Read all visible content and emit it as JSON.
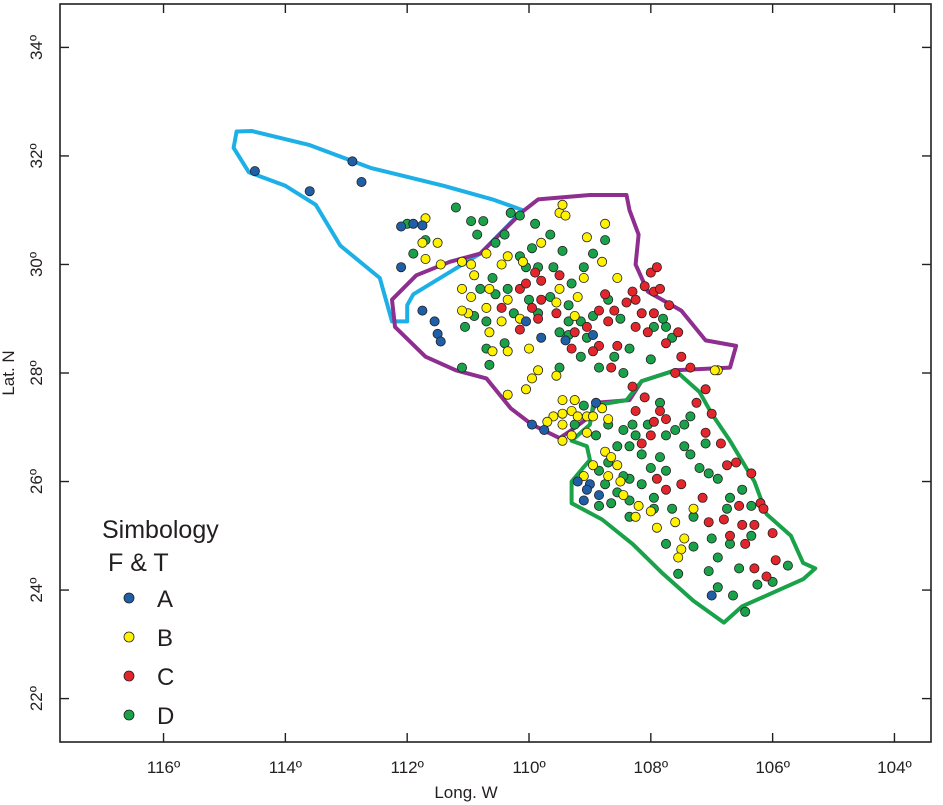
{
  "map": {
    "x_label": "Long. W",
    "y_label": "Lat. N",
    "x_ticks": [
      "116º",
      "114º",
      "112º",
      "110º",
      "108º",
      "106º",
      "104º"
    ],
    "y_ticks": [
      "34º",
      "32º",
      "30º",
      "28º",
      "26º",
      "24º",
      "22º"
    ],
    "x_tick_values": [
      -116,
      -114,
      -112,
      -110,
      -108,
      -106,
      -104
    ],
    "y_tick_values": [
      34,
      32,
      30,
      28,
      26,
      24,
      22
    ],
    "x_range": [
      -117.7,
      -103.4
    ],
    "y_range": [
      21.2,
      34.8
    ]
  },
  "legend": {
    "title": "Simbology",
    "subtitle": "F & T",
    "items": [
      {
        "key": "A",
        "label": "A",
        "color": "#1f5fa8"
      },
      {
        "key": "B",
        "label": "B",
        "color": "#fff200"
      },
      {
        "key": "C",
        "label": "C",
        "color": "#e3262b"
      },
      {
        "key": "D",
        "label": "D",
        "color": "#19a24a"
      }
    ]
  },
  "regions": [
    {
      "name": "northwest",
      "color": "#1cb0e6",
      "points": [
        [
          -114.8,
          32.45
        ],
        [
          -114.55,
          32.46
        ],
        [
          -113.6,
          32.2
        ],
        [
          -112.6,
          31.78
        ],
        [
          -111.4,
          31.45
        ],
        [
          -110.6,
          31.2
        ],
        [
          -110.1,
          31.0
        ],
        [
          -110.8,
          30.2
        ],
        [
          -111.9,
          29.45
        ],
        [
          -112.0,
          29.25
        ],
        [
          -112.0,
          28.95
        ],
        [
          -112.25,
          28.95
        ],
        [
          -112.45,
          29.75
        ],
        [
          -113.1,
          30.35
        ],
        [
          -113.5,
          31.1
        ],
        [
          -114.0,
          31.45
        ],
        [
          -114.6,
          31.7
        ],
        [
          -114.85,
          32.15
        ],
        [
          -114.8,
          32.45
        ]
      ]
    },
    {
      "name": "central",
      "color": "#8e2f8f",
      "points": [
        [
          -110.1,
          30.98
        ],
        [
          -109.85,
          31.2
        ],
        [
          -109.0,
          31.28
        ],
        [
          -108.4,
          31.28
        ],
        [
          -108.35,
          31.0
        ],
        [
          -108.2,
          30.55
        ],
        [
          -108.25,
          30.0
        ],
        [
          -108.05,
          29.5
        ],
        [
          -107.5,
          29.15
        ],
        [
          -107.1,
          28.6
        ],
        [
          -106.6,
          28.5
        ],
        [
          -106.7,
          28.1
        ],
        [
          -107.6,
          28.05
        ],
        [
          -108.15,
          27.85
        ],
        [
          -108.35,
          27.5
        ],
        [
          -108.9,
          27.45
        ],
        [
          -109.0,
          27.2
        ],
        [
          -109.3,
          26.95
        ],
        [
          -109.5,
          26.8
        ],
        [
          -109.95,
          27.05
        ],
        [
          -110.3,
          27.35
        ],
        [
          -110.7,
          27.9
        ],
        [
          -111.2,
          28.05
        ],
        [
          -111.7,
          28.3
        ],
        [
          -112.2,
          28.85
        ],
        [
          -112.25,
          29.35
        ],
        [
          -111.85,
          29.8
        ],
        [
          -111.3,
          30.05
        ],
        [
          -110.8,
          30.2
        ],
        [
          -110.1,
          30.98
        ]
      ]
    },
    {
      "name": "south",
      "color": "#19a24a",
      "points": [
        [
          -107.6,
          28.05
        ],
        [
          -107.2,
          27.65
        ],
        [
          -107.0,
          27.25
        ],
        [
          -106.7,
          26.75
        ],
        [
          -106.3,
          26.0
        ],
        [
          -106.1,
          25.4
        ],
        [
          -105.7,
          25.0
        ],
        [
          -105.5,
          24.5
        ],
        [
          -105.3,
          24.4
        ],
        [
          -105.5,
          24.2
        ],
        [
          -105.9,
          24.0
        ],
        [
          -106.5,
          23.7
        ],
        [
          -106.8,
          23.4
        ],
        [
          -107.3,
          23.8
        ],
        [
          -107.8,
          24.3
        ],
        [
          -108.3,
          24.85
        ],
        [
          -108.8,
          25.3
        ],
        [
          -109.3,
          25.6
        ],
        [
          -109.3,
          26.0
        ],
        [
          -109.0,
          26.4
        ],
        [
          -109.05,
          26.65
        ],
        [
          -109.3,
          26.75
        ],
        [
          -109.0,
          27.05
        ],
        [
          -108.95,
          27.4
        ],
        [
          -108.4,
          27.5
        ],
        [
          -108.15,
          27.85
        ],
        [
          -107.6,
          28.05
        ]
      ]
    }
  ],
  "stations": {
    "A": [
      [
        -114.5,
        31.72
      ],
      [
        -113.6,
        31.35
      ],
      [
        -112.9,
        31.9
      ],
      [
        -112.75,
        31.52
      ],
      [
        -112.1,
        30.7
      ],
      [
        -111.9,
        30.75
      ],
      [
        -111.75,
        30.72
      ],
      [
        -112.1,
        29.95
      ],
      [
        -111.75,
        29.15
      ],
      [
        -111.55,
        28.95
      ],
      [
        -111.5,
        28.72
      ],
      [
        -111.45,
        28.58
      ],
      [
        -110.05,
        28.95
      ],
      [
        -109.8,
        28.65
      ],
      [
        -109.4,
        28.6
      ],
      [
        -108.95,
        28.7
      ],
      [
        -109.95,
        27.05
      ],
      [
        -109.75,
        26.95
      ],
      [
        -108.9,
        27.45
      ],
      [
        -109.2,
        26.0
      ],
      [
        -109.0,
        25.95
      ],
      [
        -108.85,
        25.75
      ],
      [
        -109.05,
        25.85
      ],
      [
        -109.1,
        25.65
      ],
      [
        -107.0,
        23.9
      ]
    ],
    "B": [
      [
        -111.7,
        30.85
      ],
      [
        -111.75,
        30.4
      ],
      [
        -111.5,
        30.4
      ],
      [
        -111.7,
        30.1
      ],
      [
        -111.45,
        30.0
      ],
      [
        -111.1,
        30.05
      ],
      [
        -110.95,
        30.0
      ],
      [
        -110.7,
        30.2
      ],
      [
        -110.9,
        29.8
      ],
      [
        -111.1,
        29.55
      ],
      [
        -110.95,
        29.4
      ],
      [
        -110.7,
        29.2
      ],
      [
        -111.0,
        29.1
      ],
      [
        -111.1,
        29.15
      ],
      [
        -110.65,
        29.55
      ],
      [
        -110.35,
        29.35
      ],
      [
        -110.35,
        30.15
      ],
      [
        -110.45,
        30.0
      ],
      [
        -110.1,
        30.05
      ],
      [
        -109.8,
        30.4
      ],
      [
        -109.5,
        30.95
      ],
      [
        -109.45,
        31.1
      ],
      [
        -109.4,
        30.9
      ],
      [
        -109.05,
        30.5
      ],
      [
        -108.75,
        30.75
      ],
      [
        -108.8,
        30.05
      ],
      [
        -108.55,
        29.75
      ],
      [
        -109.1,
        29.75
      ],
      [
        -109.5,
        29.55
      ],
      [
        -109.2,
        29.4
      ],
      [
        -109.25,
        29.05
      ],
      [
        -109.55,
        29.3
      ],
      [
        -110.15,
        29.0
      ],
      [
        -110.45,
        28.95
      ],
      [
        -110.6,
        28.4
      ],
      [
        -110.35,
        28.4
      ],
      [
        -110.0,
        28.45
      ],
      [
        -110.35,
        27.6
      ],
      [
        -110.05,
        27.7
      ],
      [
        -109.95,
        27.9
      ],
      [
        -109.85,
        28.05
      ],
      [
        -109.55,
        27.95
      ],
      [
        -109.45,
        27.5
      ],
      [
        -109.3,
        27.3
      ],
      [
        -109.25,
        27.5
      ],
      [
        -109.2,
        27.2
      ],
      [
        -109.05,
        27.2
      ],
      [
        -108.95,
        27.2
      ],
      [
        -108.8,
        27.35
      ],
      [
        -109.45,
        27.25
      ],
      [
        -109.6,
        27.2
      ],
      [
        -109.7,
        27.1
      ],
      [
        -109.45,
        27.05
      ],
      [
        -109.3,
        26.85
      ],
      [
        -109.45,
        26.75
      ],
      [
        -109.05,
        26.9
      ],
      [
        -108.75,
        26.55
      ],
      [
        -108.65,
        26.45
      ],
      [
        -108.55,
        26.3
      ],
      [
        -108.7,
        26.1
      ],
      [
        -108.5,
        26.0
      ],
      [
        -108.45,
        25.75
      ],
      [
        -108.2,
        25.55
      ],
      [
        -108.25,
        25.35
      ],
      [
        -108.0,
        25.45
      ],
      [
        -107.9,
        25.15
      ],
      [
        -107.6,
        25.25
      ],
      [
        -107.45,
        24.95
      ],
      [
        -107.5,
        24.75
      ],
      [
        -107.55,
        24.6
      ],
      [
        -107.3,
        25.5
      ],
      [
        -106.9,
        28.05
      ],
      [
        -106.95,
        28.05
      ],
      [
        -109.1,
        26.1
      ],
      [
        -108.95,
        26.3
      ],
      [
        -108.7,
        27.15
      ],
      [
        -110.65,
        28.75
      ]
    ],
    "C": [
      [
        -109.9,
        29.85
      ],
      [
        -109.8,
        29.7
      ],
      [
        -109.5,
        29.8
      ],
      [
        -110.15,
        29.55
      ],
      [
        -110.05,
        29.65
      ],
      [
        -110.45,
        29.2
      ],
      [
        -109.95,
        29.2
      ],
      [
        -109.8,
        29.35
      ],
      [
        -110.15,
        28.8
      ],
      [
        -109.85,
        29.0
      ],
      [
        -109.55,
        29.1
      ],
      [
        -109.25,
        28.75
      ],
      [
        -109.3,
        28.45
      ],
      [
        -109.05,
        28.85
      ],
      [
        -108.85,
        28.5
      ],
      [
        -108.95,
        28.4
      ],
      [
        -108.65,
        28.1
      ],
      [
        -108.55,
        28.5
      ],
      [
        -108.85,
        29.15
      ],
      [
        -108.75,
        29.45
      ],
      [
        -108.6,
        29.15
      ],
      [
        -108.3,
        29.5
      ],
      [
        -108.25,
        29.35
      ],
      [
        -108.1,
        29.6
      ],
      [
        -108.0,
        29.85
      ],
      [
        -107.9,
        29.95
      ],
      [
        -107.95,
        29.5
      ],
      [
        -107.7,
        29.25
      ],
      [
        -107.95,
        29.1
      ],
      [
        -107.55,
        28.75
      ],
      [
        -107.5,
        28.3
      ],
      [
        -107.6,
        28.0
      ],
      [
        -107.1,
        27.7
      ],
      [
        -107.25,
        27.45
      ],
      [
        -107.0,
        27.25
      ],
      [
        -107.1,
        26.9
      ],
      [
        -106.85,
        26.7
      ],
      [
        -106.6,
        26.35
      ],
      [
        -106.35,
        26.15
      ],
      [
        -106.2,
        25.6
      ],
      [
        -106.3,
        25.2
      ],
      [
        -106.0,
        25.05
      ],
      [
        -105.95,
        24.55
      ],
      [
        -106.1,
        24.25
      ],
      [
        -106.3,
        24.4
      ],
      [
        -106.45,
        24.85
      ],
      [
        -106.7,
        25.0
      ],
      [
        -106.8,
        25.3
      ],
      [
        -107.05,
        25.25
      ],
      [
        -107.15,
        25.7
      ],
      [
        -107.5,
        25.95
      ],
      [
        -107.75,
        25.85
      ],
      [
        -107.9,
        26.05
      ],
      [
        -108.15,
        26.7
      ],
      [
        -108.0,
        26.85
      ],
      [
        -107.95,
        27.1
      ],
      [
        -108.25,
        27.3
      ],
      [
        -108.1,
        27.55
      ],
      [
        -108.3,
        27.75
      ],
      [
        -107.85,
        27.3
      ],
      [
        -107.75,
        27.15
      ],
      [
        -108.7,
        28.95
      ],
      [
        -108.25,
        28.85
      ],
      [
        -108.05,
        28.75
      ],
      [
        -107.75,
        28.55
      ],
      [
        -107.35,
        28.1
      ],
      [
        -108.15,
        29.1
      ],
      [
        -108.4,
        29.3
      ],
      [
        -107.85,
        29.55
      ],
      [
        -106.5,
        25.2
      ],
      [
        -106.55,
        25.55
      ],
      [
        -106.15,
        25.5
      ],
      [
        -106.75,
        26.3
      ]
    ],
    "D": [
      [
        -112.0,
        30.75
      ],
      [
        -111.9,
        30.2
      ],
      [
        -111.7,
        30.45
      ],
      [
        -111.2,
        31.05
      ],
      [
        -110.95,
        30.8
      ],
      [
        -110.75,
        30.8
      ],
      [
        -110.85,
        30.55
      ],
      [
        -110.55,
        30.4
      ],
      [
        -110.4,
        30.55
      ],
      [
        -110.3,
        30.95
      ],
      [
        -110.15,
        30.9
      ],
      [
        -109.9,
        30.75
      ],
      [
        -109.65,
        30.55
      ],
      [
        -109.45,
        30.25
      ],
      [
        -109.95,
        30.3
      ],
      [
        -110.15,
        30.15
      ],
      [
        -110.05,
        29.95
      ],
      [
        -109.85,
        29.95
      ],
      [
        -109.6,
        29.95
      ],
      [
        -109.3,
        29.65
      ],
      [
        -109.1,
        29.95
      ],
      [
        -108.95,
        30.2
      ],
      [
        -108.75,
        30.45
      ],
      [
        -110.6,
        29.75
      ],
      [
        -110.8,
        29.55
      ],
      [
        -110.55,
        29.45
      ],
      [
        -110.35,
        29.55
      ],
      [
        -110.25,
        29.1
      ],
      [
        -110.0,
        29.35
      ],
      [
        -109.85,
        29.1
      ],
      [
        -109.65,
        29.4
      ],
      [
        -109.35,
        29.25
      ],
      [
        -109.15,
        28.95
      ],
      [
        -108.95,
        29.05
      ],
      [
        -108.7,
        29.35
      ],
      [
        -108.5,
        29.0
      ],
      [
        -109.35,
        28.95
      ],
      [
        -109.5,
        28.75
      ],
      [
        -109.35,
        28.7
      ],
      [
        -109.05,
        28.65
      ],
      [
        -110.4,
        28.55
      ],
      [
        -110.7,
        28.45
      ],
      [
        -110.7,
        28.95
      ],
      [
        -110.9,
        29.05
      ],
      [
        -111.05,
        28.85
      ],
      [
        -110.65,
        28.15
      ],
      [
        -111.1,
        28.1
      ],
      [
        -109.5,
        28.1
      ],
      [
        -109.15,
        28.3
      ],
      [
        -108.85,
        28.1
      ],
      [
        -109.25,
        27.5
      ],
      [
        -109.1,
        27.4
      ],
      [
        -109.25,
        27.05
      ],
      [
        -108.9,
        26.85
      ],
      [
        -108.7,
        27.05
      ],
      [
        -108.55,
        26.65
      ],
      [
        -108.35,
        26.65
      ],
      [
        -108.25,
        26.85
      ],
      [
        -108.45,
        26.95
      ],
      [
        -108.05,
        27.05
      ],
      [
        -107.75,
        26.85
      ],
      [
        -107.6,
        26.95
      ],
      [
        -107.45,
        27.05
      ],
      [
        -107.1,
        26.7
      ],
      [
        -107.35,
        26.5
      ],
      [
        -107.05,
        26.15
      ],
      [
        -106.9,
        26.05
      ],
      [
        -106.5,
        25.85
      ],
      [
        -106.35,
        25.55
      ],
      [
        -106.75,
        25.5
      ],
      [
        -107.0,
        24.95
      ],
      [
        -106.7,
        24.85
      ],
      [
        -106.55,
        24.4
      ],
      [
        -106.25,
        24.1
      ],
      [
        -106.0,
        24.15
      ],
      [
        -105.75,
        24.45
      ],
      [
        -106.45,
        23.6
      ],
      [
        -106.65,
        23.9
      ],
      [
        -106.9,
        24.05
      ],
      [
        -107.3,
        24.8
      ],
      [
        -107.55,
        24.3
      ],
      [
        -107.75,
        24.85
      ],
      [
        -107.95,
        25.5
      ],
      [
        -108.15,
        25.95
      ],
      [
        -108.35,
        26.05
      ],
      [
        -107.85,
        26.45
      ],
      [
        -107.75,
        26.2
      ],
      [
        -107.65,
        25.5
      ],
      [
        -107.3,
        25.35
      ],
      [
        -108.0,
        26.25
      ],
      [
        -108.15,
        26.5
      ],
      [
        -108.7,
        26.35
      ],
      [
        -108.45,
        26.1
      ],
      [
        -108.85,
        26.2
      ],
      [
        -108.75,
        25.95
      ],
      [
        -108.55,
        25.8
      ],
      [
        -108.85,
        25.55
      ],
      [
        -108.35,
        25.35
      ],
      [
        -107.95,
        25.7
      ],
      [
        -108.65,
        25.6
      ],
      [
        -108.35,
        25.65
      ],
      [
        -108.3,
        27.05
      ],
      [
        -107.85,
        27.45
      ],
      [
        -107.35,
        27.2
      ],
      [
        -107.45,
        26.65
      ],
      [
        -107.2,
        26.25
      ],
      [
        -106.7,
        25.7
      ],
      [
        -106.35,
        25.0
      ],
      [
        -106.9,
        24.6
      ],
      [
        -107.05,
        24.35
      ],
      [
        -108.0,
        28.25
      ],
      [
        -108.35,
        28.45
      ],
      [
        -108.45,
        28.0
      ],
      [
        -108.6,
        28.3
      ],
      [
        -107.65,
        28.65
      ],
      [
        -107.75,
        28.85
      ],
      [
        -107.8,
        29.0
      ],
      [
        -107.95,
        28.85
      ]
    ]
  }
}
